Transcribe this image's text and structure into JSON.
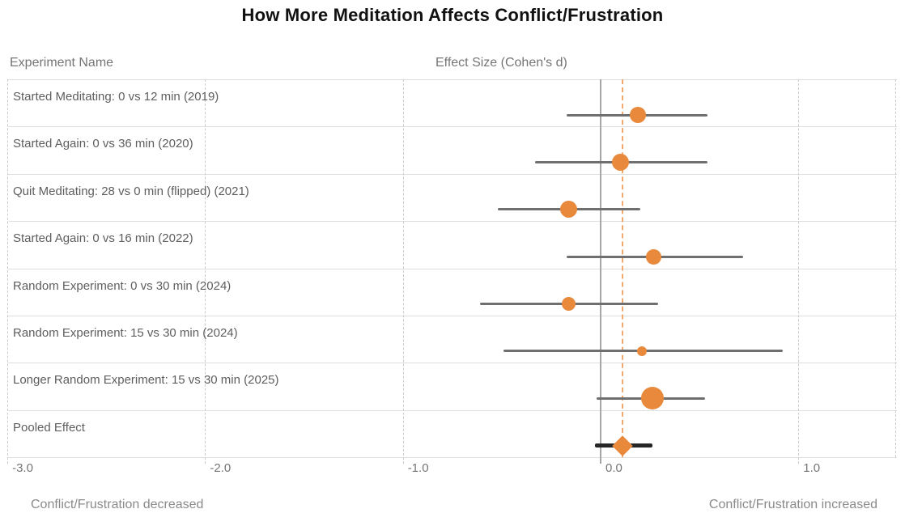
{
  "title": "How More Meditation Affects Conflict/Frustration",
  "columns": {
    "left_header": "Experiment Name",
    "right_header": "Effect Size (Cohen's d)"
  },
  "footer": {
    "left_label": "Conflict/Frustration decreased",
    "right_label": "Conflict/Frustration increased"
  },
  "colors": {
    "marker_orange": "#e8893c",
    "pooled_line_orange": "#f2a96b",
    "ci_gray": "#6f6f6f",
    "pooled_ci_black": "#262626",
    "zero_line_gray": "#a6a6a6",
    "gridline_gray": "#cbcbcb",
    "separator_gray": "#dedede",
    "title_color": "#111111",
    "text_gray": "#5e5e5e",
    "muted_gray": "#757575",
    "footer_gray": "#8a8a8a"
  },
  "chart_data": {
    "type": "scatter",
    "subtype": "forest-plot",
    "title": "How More Meditation Affects Conflict/Frustration",
    "xlabel": "Effect Size (Cohen's d)",
    "ylabel": "Experiment Name",
    "x_range": [
      -3.0,
      1.5
    ],
    "x_ticks": [
      -3.0,
      -2.0,
      -1.0,
      0.0,
      1.0
    ],
    "x_tick_labels": [
      "-3.0",
      "-2.0",
      "-1.0",
      "0.0",
      "1.0"
    ],
    "grid": "dashed-vertical",
    "zero_reference_line": 0.0,
    "pooled_reference_line": 0.11,
    "direction_note_negative": "Conflict/Frustration decreased",
    "direction_note_positive": "Conflict/Frustration increased",
    "studies": [
      {
        "label": "Started Meditating: 0 vs 12 min (2019)",
        "effect": 0.19,
        "ci_low": -0.17,
        "ci_high": 0.54,
        "marker_size_px": 20
      },
      {
        "label": "Started Again: 0 vs 36 min (2020)",
        "effect": 0.1,
        "ci_low": -0.33,
        "ci_high": 0.54,
        "marker_size_px": 21
      },
      {
        "label": "Quit Meditating: 28 vs 0 min (flipped) (2021)",
        "effect": -0.16,
        "ci_low": -0.52,
        "ci_high": 0.2,
        "marker_size_px": 21
      },
      {
        "label": "Started Again: 0 vs 16 min (2022)",
        "effect": 0.27,
        "ci_low": -0.17,
        "ci_high": 0.72,
        "marker_size_px": 19
      },
      {
        "label": "Random Experiment: 0 vs 30 min (2024)",
        "effect": -0.16,
        "ci_low": -0.61,
        "ci_high": 0.29,
        "marker_size_px": 17
      },
      {
        "label": "Random Experiment: 15 vs 30 min (2024)",
        "effect": 0.21,
        "ci_low": -0.49,
        "ci_high": 0.92,
        "marker_size_px": 12
      },
      {
        "label": "Longer Random Experiment: 15 vs 30 min (2025)",
        "effect": 0.26,
        "ci_low": -0.02,
        "ci_high": 0.53,
        "marker_size_px": 28
      }
    ],
    "pooled": {
      "label": "Pooled Effect",
      "effect": 0.11,
      "ci_low": -0.03,
      "ci_high": 0.26,
      "marker": "diamond"
    }
  }
}
